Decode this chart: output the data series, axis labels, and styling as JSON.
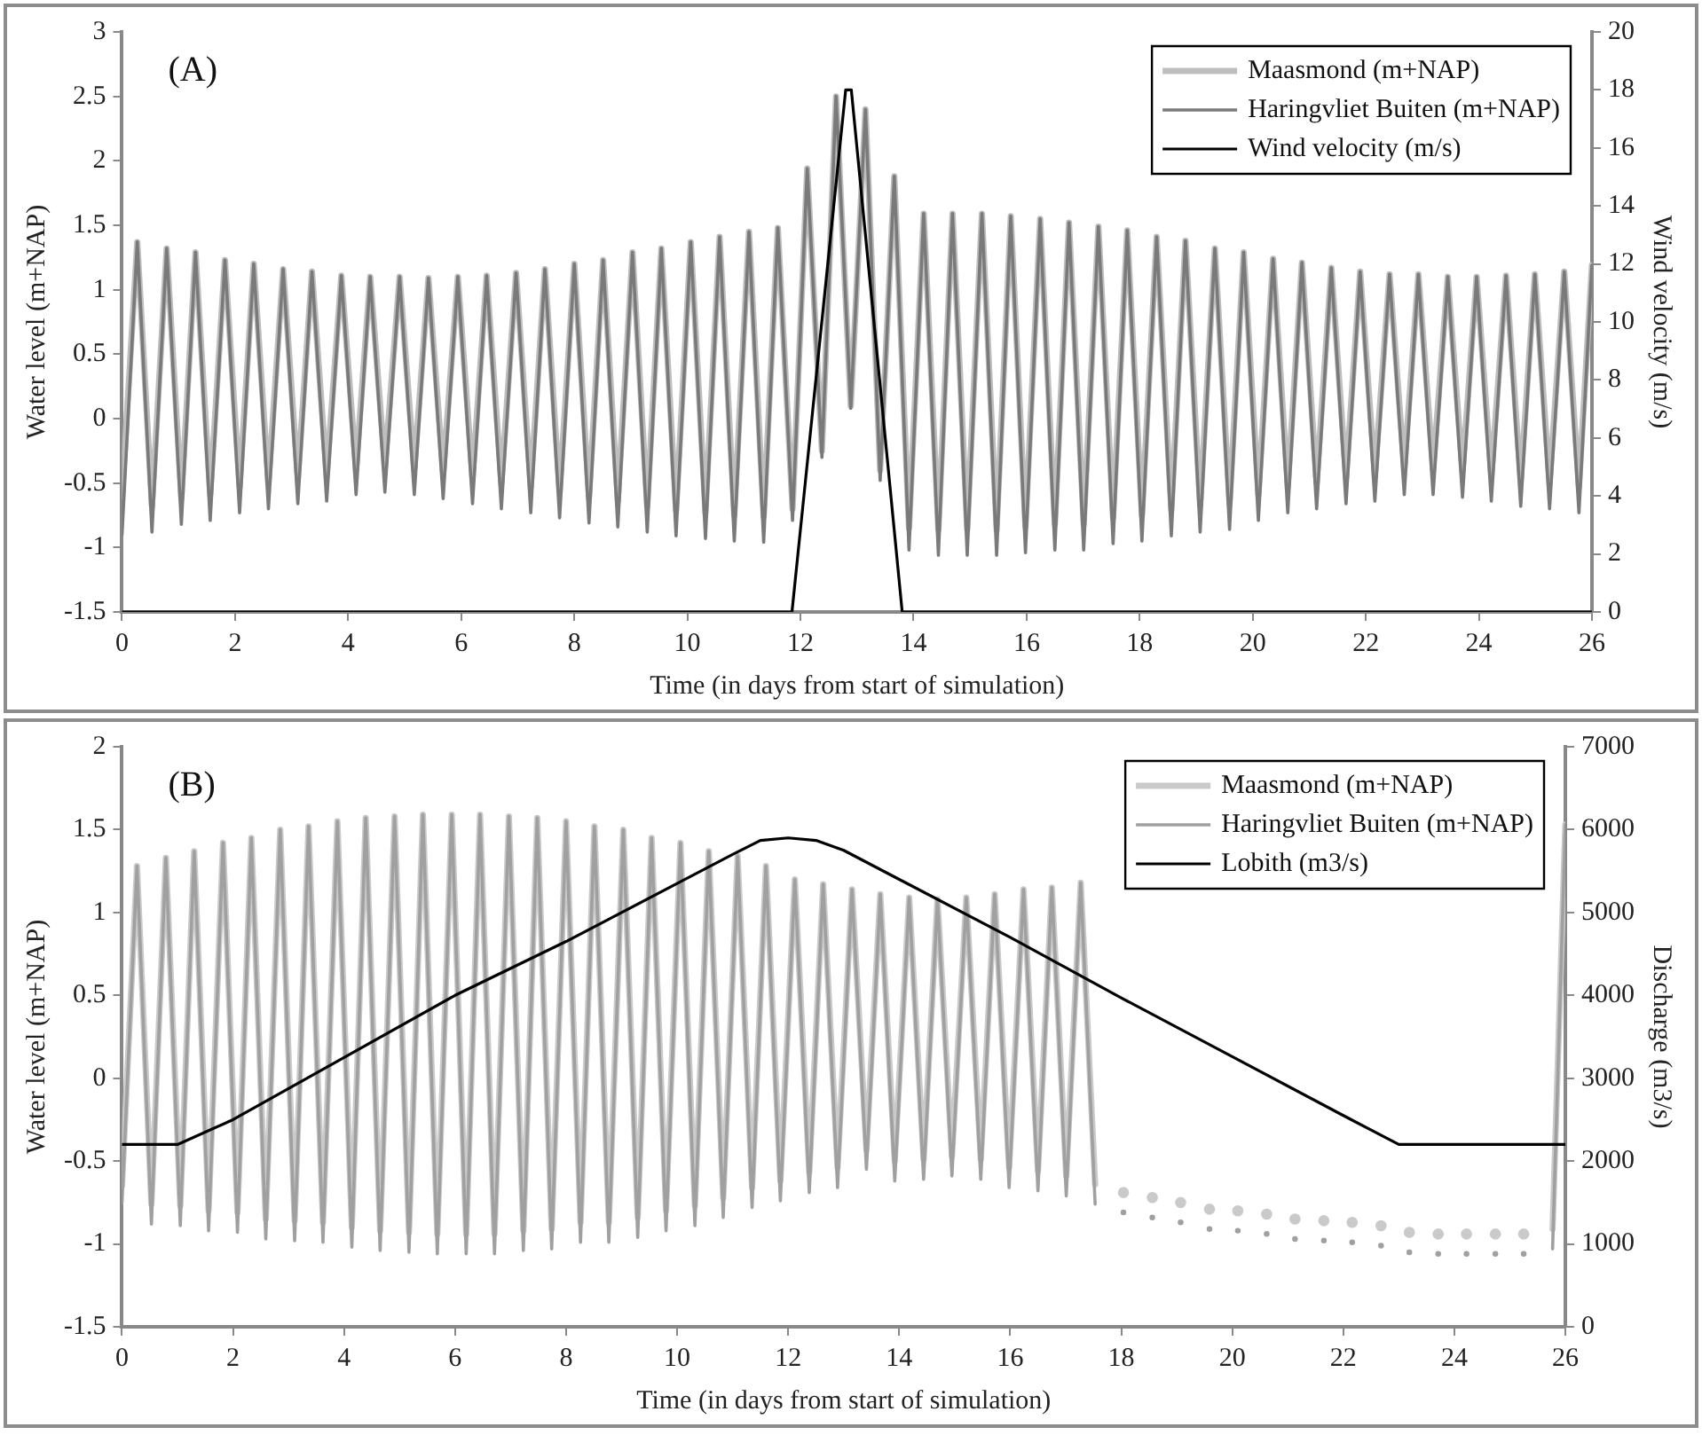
{
  "chart_data": [
    {
      "type": "line",
      "xlabel": "Time (in days from start of simulation)",
      "ylabel": "Water level (m+NAP)",
      "y2label": "Wind velocity (m/s)",
      "annotations": [
        "(A)"
      ],
      "x": [
        0,
        0.27,
        0.53,
        0.79,
        1.05,
        1.3,
        1.56,
        1.82,
        2.08,
        2.33,
        2.59,
        2.85,
        3.11,
        3.36,
        3.62,
        3.88,
        4.14,
        4.39,
        4.65,
        4.91,
        5.17,
        5.42,
        5.68,
        5.94,
        6.2,
        6.45,
        6.71,
        6.97,
        7.23,
        7.48,
        7.74,
        8.0,
        8.26,
        8.51,
        8.77,
        9.03,
        9.29,
        9.54,
        9.8,
        10.06,
        10.32,
        10.57,
        10.83,
        11.09,
        11.35,
        11.6,
        11.86,
        12.12,
        12.38,
        12.63,
        12.89,
        13.15,
        13.41,
        13.66,
        13.92,
        14.18,
        14.44,
        14.69,
        14.95,
        15.21,
        15.47,
        15.72,
        15.98,
        16.24,
        16.5,
        16.75,
        17.01,
        17.27,
        17.53,
        17.78,
        18.04,
        18.3,
        18.56,
        18.81,
        19.07,
        19.33,
        19.59,
        19.84,
        20.1,
        20.36,
        20.62,
        20.87,
        21.13,
        21.39,
        21.65,
        21.9,
        22.16,
        22.42,
        22.68,
        22.93,
        23.19,
        23.45,
        23.71,
        23.96,
        24.22,
        24.48,
        24.74,
        24.99,
        25.25,
        25.51,
        25.77,
        26
      ],
      "series": [
        {
          "name": "Maasmond (m+NAP)",
          "color": "#bebebe",
          "values": [
            -0.6,
            1.37,
            -0.68,
            1.32,
            -0.62,
            1.29,
            -0.59,
            1.23,
            -0.53,
            1.2,
            -0.5,
            1.16,
            -0.46,
            1.14,
            -0.44,
            1.11,
            -0.39,
            1.1,
            -0.37,
            1.1,
            -0.39,
            1.09,
            -0.42,
            1.1,
            -0.46,
            1.11,
            -0.5,
            1.13,
            -0.53,
            1.16,
            -0.57,
            1.2,
            -0.61,
            1.23,
            -0.64,
            1.29,
            -0.68,
            1.32,
            -0.71,
            1.37,
            -0.73,
            1.41,
            -0.75,
            1.45,
            -0.76,
            1.48,
            -0.7,
            1.94,
            -0.25,
            2.5,
            0.1,
            2.4,
            -0.4,
            1.88,
            -0.85,
            1.59,
            -0.86,
            1.59,
            -0.86,
            1.59,
            -0.86,
            1.57,
            -0.84,
            1.55,
            -0.82,
            1.52,
            -0.82,
            1.49,
            -0.77,
            1.46,
            -0.75,
            1.41,
            -0.71,
            1.38,
            -0.68,
            1.32,
            -0.66,
            1.29,
            -0.59,
            1.24,
            -0.53,
            1.21,
            -0.5,
            1.17,
            -0.46,
            1.14,
            -0.44,
            1.12,
            -0.39,
            1.12,
            -0.39,
            1.1,
            -0.41,
            1.1,
            -0.44,
            1.11,
            -0.48,
            1.12,
            -0.5,
            1.14,
            -0.53,
            1.19
          ]
        },
        {
          "name": "Haringvliet Buiten (m+NAP)",
          "color": "#7a7a7a",
          "values": [
            -0.9,
            1.37,
            -0.88,
            1.32,
            -0.82,
            1.29,
            -0.79,
            1.23,
            -0.73,
            1.2,
            -0.7,
            1.16,
            -0.66,
            1.14,
            -0.64,
            1.11,
            -0.59,
            1.1,
            -0.57,
            1.1,
            -0.59,
            1.09,
            -0.62,
            1.1,
            -0.66,
            1.11,
            -0.7,
            1.13,
            -0.73,
            1.16,
            -0.77,
            1.2,
            -0.81,
            1.23,
            -0.84,
            1.29,
            -0.88,
            1.32,
            -0.91,
            1.37,
            -0.93,
            1.41,
            -0.95,
            1.45,
            -0.96,
            1.48,
            -0.79,
            1.94,
            -0.3,
            2.5,
            0.08,
            2.4,
            -0.48,
            1.88,
            -1.02,
            1.59,
            -1.06,
            1.59,
            -1.06,
            1.59,
            -1.06,
            1.57,
            -1.04,
            1.55,
            -1.02,
            1.52,
            -1.02,
            1.49,
            -0.97,
            1.46,
            -0.95,
            1.41,
            -0.91,
            1.38,
            -0.88,
            1.32,
            -0.86,
            1.29,
            -0.79,
            1.24,
            -0.73,
            1.21,
            -0.7,
            1.17,
            -0.66,
            1.14,
            -0.64,
            1.12,
            -0.59,
            1.12,
            -0.59,
            1.1,
            -0.61,
            1.1,
            -0.64,
            1.11,
            -0.68,
            1.12,
            -0.7,
            1.14,
            -0.73,
            1.19
          ]
        },
        {
          "name": "Wind velocity (m/s)",
          "color": "#000000",
          "axis": "y2",
          "x": [
            0,
            11.85,
            12.8,
            12.9,
            13.8,
            26
          ],
          "values": [
            0,
            0,
            18,
            18,
            0,
            0
          ]
        }
      ],
      "xlim": [
        0,
        26
      ],
      "xticks": [
        0,
        2,
        4,
        6,
        8,
        10,
        12,
        14,
        16,
        18,
        20,
        22,
        24,
        26
      ],
      "ylim": [
        -1.5,
        3
      ],
      "yticks": [
        -1.5,
        -1,
        -0.5,
        0,
        0.5,
        1,
        1.5,
        2,
        2.5,
        3
      ],
      "y2lim": [
        0,
        20
      ],
      "y2ticks": [
        0,
        2,
        4,
        6,
        8,
        10,
        12,
        14,
        16,
        18,
        20
      ],
      "legend": "top right",
      "marker": "none",
      "line_style": "solid"
    },
    {
      "type": "line",
      "xlabel": "Time (in days from start of simulation)",
      "ylabel": "Water level (m+NAP)",
      "y2label": "Discharge (m3/s)",
      "annotations": [
        "(B)"
      ],
      "x": [
        0,
        0.27,
        0.53,
        0.79,
        1.05,
        1.3,
        1.56,
        1.82,
        2.08,
        2.33,
        2.59,
        2.85,
        3.11,
        3.36,
        3.62,
        3.88,
        4.14,
        4.39,
        4.65,
        4.91,
        5.17,
        5.42,
        5.68,
        5.94,
        6.2,
        6.45,
        6.71,
        6.97,
        7.23,
        7.48,
        7.74,
        8.0,
        8.26,
        8.51,
        8.77,
        9.03,
        9.29,
        9.54,
        9.8,
        10.06,
        10.32,
        10.57,
        10.83,
        11.09,
        11.35,
        11.6,
        11.86,
        12.12,
        12.38,
        12.63,
        12.89,
        13.15,
        13.41,
        13.66,
        13.92,
        14.18,
        14.44,
        14.69,
        14.95,
        15.21,
        15.47,
        15.72,
        15.98,
        16.24,
        16.5,
        16.75,
        17.01,
        17.27,
        17.53,
        17.78,
        18.04,
        18.3,
        18.56,
        18.81,
        19.07,
        19.33,
        19.59,
        19.84,
        20.1,
        20.36,
        20.62,
        20.87,
        21.13,
        21.39,
        21.65,
        21.9,
        22.16,
        22.42,
        22.68,
        22.93,
        23.19,
        23.45,
        23.71,
        23.96,
        24.22,
        24.48,
        24.74,
        24.99,
        25.25,
        25.51,
        25.77,
        26
      ],
      "series": [
        {
          "name": "Maasmond (m+NAP)",
          "color": "#cacaca",
          "values": [
            -0.65,
            1.28,
            -0.76,
            1.33,
            -0.77,
            1.37,
            -0.8,
            1.42,
            -0.81,
            1.45,
            -0.85,
            1.5,
            -0.86,
            1.52,
            -0.87,
            1.55,
            -0.9,
            1.57,
            -0.92,
            1.58,
            -0.93,
            1.59,
            -0.94,
            1.59,
            -0.94,
            1.59,
            -0.94,
            1.58,
            -0.92,
            1.57,
            -0.91,
            1.55,
            -0.87,
            1.52,
            -0.87,
            1.5,
            -0.84,
            1.45,
            -0.8,
            1.42,
            -0.77,
            1.37,
            -0.72,
            1.34,
            -0.66,
            1.28,
            -0.62,
            1.2,
            -0.57,
            1.17,
            -0.54,
            1.14,
            -0.43,
            1.11,
            -0.5,
            1.09,
            -0.49,
            1.08,
            -0.47,
            1.09,
            -0.49,
            1.11,
            -0.54,
            1.14,
            -0.56,
            1.15,
            -0.59,
            1.18,
            -0.64,
            null,
            -0.69,
            null,
            -0.72,
            null,
            -0.75,
            null,
            -0.79,
            null,
            -0.8,
            null,
            -0.82,
            null,
            -0.85,
            null,
            -0.86,
            null,
            -0.87,
            null,
            -0.89,
            null,
            -0.93,
            null,
            -0.94,
            null,
            -0.94,
            null,
            -0.94,
            null,
            -0.94,
            null,
            -0.91,
            1.53
          ]
        },
        {
          "name": "Haringvliet Buiten (m+NAP)",
          "color": "#a0a0a0",
          "values": [
            -0.75,
            1.28,
            -0.88,
            1.33,
            -0.89,
            1.37,
            -0.92,
            1.42,
            -0.93,
            1.45,
            -0.97,
            1.5,
            -0.98,
            1.52,
            -0.99,
            1.55,
            -1.02,
            1.57,
            -1.04,
            1.58,
            -1.05,
            1.59,
            -1.06,
            1.59,
            -1.06,
            1.59,
            -1.06,
            1.58,
            -1.04,
            1.57,
            -1.03,
            1.55,
            -0.99,
            1.52,
            -0.99,
            1.5,
            -0.96,
            1.45,
            -0.92,
            1.42,
            -0.89,
            1.37,
            -0.84,
            1.34,
            -0.78,
            1.28,
            -0.74,
            1.2,
            -0.69,
            1.17,
            -0.66,
            1.14,
            -0.55,
            1.11,
            -0.62,
            1.09,
            -0.61,
            1.08,
            -0.59,
            1.09,
            -0.61,
            1.11,
            -0.66,
            1.14,
            -0.68,
            1.15,
            -0.71,
            1.18,
            -0.76,
            null,
            -0.81,
            null,
            -0.84,
            null,
            -0.87,
            null,
            -0.91,
            null,
            -0.92,
            null,
            -0.94,
            null,
            -0.97,
            null,
            -0.98,
            null,
            -0.99,
            null,
            -1.01,
            null,
            -1.05,
            null,
            -1.06,
            null,
            -1.06,
            null,
            -1.06,
            null,
            -1.06,
            null,
            -1.03,
            1.53
          ]
        },
        {
          "name": "Lobith (m3/s)",
          "color": "#000000",
          "axis": "y2",
          "x": [
            0,
            1,
            2,
            4,
            6,
            8,
            10,
            11,
            11.5,
            12,
            12.5,
            13,
            14,
            16,
            18,
            20,
            22,
            23,
            26
          ],
          "values": [
            2200,
            2200,
            2500,
            3250,
            4000,
            4650,
            5350,
            5700,
            5870,
            5900,
            5870,
            5750,
            5400,
            4700,
            3970,
            3260,
            2550,
            2200,
            2200
          ]
        }
      ],
      "xlim": [
        0,
        26
      ],
      "xticks": [
        0,
        2,
        4,
        6,
        8,
        10,
        12,
        14,
        16,
        18,
        20,
        22,
        24,
        26
      ],
      "ylim": [
        -1.5,
        2
      ],
      "yticks": [
        -1.5,
        -1,
        -0.5,
        0,
        0.5,
        1,
        1.5,
        2
      ],
      "y2lim": [
        0,
        7000
      ],
      "y2ticks": [
        0,
        1000,
        2000,
        3000,
        4000,
        5000,
        6000,
        7000
      ],
      "legend": "top right",
      "marker": "none",
      "line_style": "solid"
    }
  ]
}
